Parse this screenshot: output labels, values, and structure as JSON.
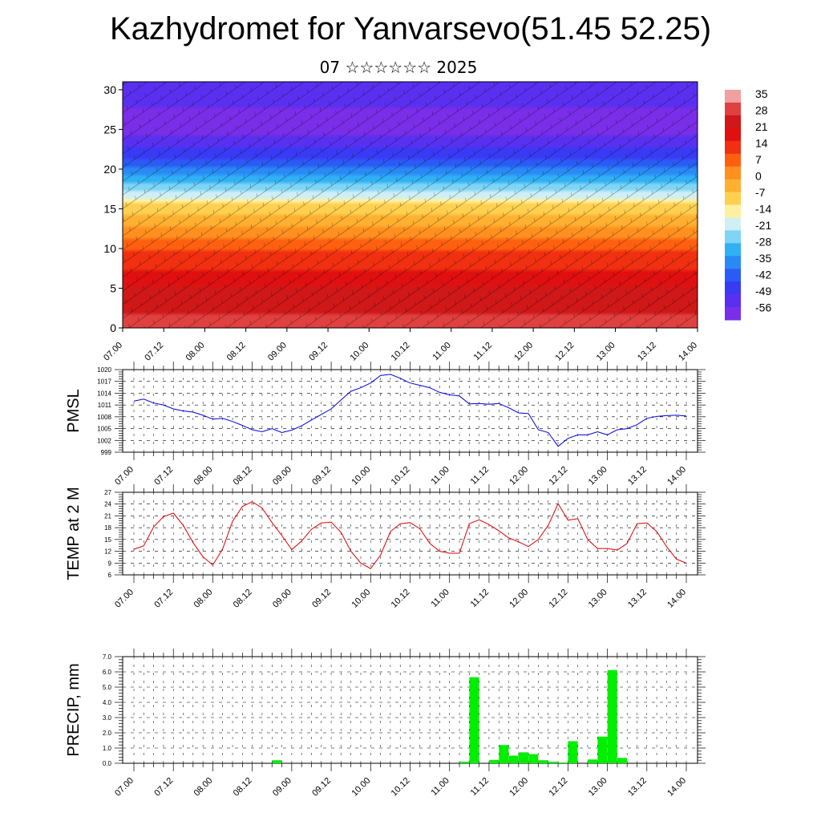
{
  "title": "Kazhydromet for Yanvarsevo(51.45 52.25)",
  "subtitle": "07 ☆☆☆☆☆☆ 2025",
  "time_labels": [
    "07.00",
    "07.12",
    "08.00",
    "08.12",
    "09.00",
    "09.12",
    "10.00",
    "10.12",
    "11.00",
    "11.12",
    "12.00",
    "12.12",
    "13.00",
    "13.12",
    "14.00"
  ],
  "colors": {
    "pmsl_line": "#0000e0",
    "temp_line": "#e00000",
    "precip_bar": "#00ee00",
    "colorbar": [
      "#7a2ee8",
      "#5a30f0",
      "#3a3af5",
      "#2a5cf5",
      "#2a8af5",
      "#30b0f5",
      "#7fd5f5",
      "#cfeff5",
      "#fff0a0",
      "#ffd050",
      "#ffb030",
      "#ff9020",
      "#ff6010",
      "#f03010",
      "#e01010",
      "#d01818",
      "#e04040",
      "#f0a0a0"
    ]
  },
  "chart_data": [
    {
      "type": "heatmap",
      "title": "",
      "xlabel": "",
      "ylabel": "",
      "ylim": [
        0,
        31
      ],
      "yticks": [
        0,
        5,
        10,
        15,
        20,
        25,
        30
      ],
      "colorbar_labels": [
        "35",
        "28",
        "21",
        "14",
        "7",
        "0",
        "-7",
        "-14",
        "-21",
        "-28",
        "-35",
        "-42",
        "-49",
        "-56"
      ],
      "colorbar_range": [
        -60,
        38
      ],
      "description_levels_height_to_value": [
        [
          0,
          30
        ],
        [
          5,
          22
        ],
        [
          10,
          10
        ],
        [
          15,
          -8
        ],
        [
          20,
          -38
        ],
        [
          25,
          -58
        ],
        [
          30,
          -52
        ]
      ]
    },
    {
      "type": "line",
      "ylabel": "PMSL",
      "ylim": [
        999,
        1020
      ],
      "yticks": [
        999,
        1002,
        1005,
        1008,
        1011,
        1014,
        1017,
        1020
      ],
      "x_hours_step": 3,
      "values": [
        1012,
        1012.5,
        1011.5,
        1011,
        1010,
        1009.5,
        1009.2,
        1008.4,
        1007.4,
        1007.6,
        1006.8,
        1005.8,
        1004.7,
        1004.2,
        1005,
        1004,
        1004.6,
        1005.7,
        1007.2,
        1008.6,
        1010,
        1012.3,
        1014.5,
        1015.4,
        1016.6,
        1018.5,
        1018.8,
        1017.8,
        1016.6,
        1016,
        1015.4,
        1014.2,
        1013.6,
        1013.3,
        1011.3,
        1011.4,
        1011.2,
        1011.4,
        1010.3,
        1009,
        1008.8,
        1004.7,
        1004,
        1000.5,
        1002.5,
        1003.4,
        1003.4,
        1004.2,
        1003.4,
        1004.7,
        1005,
        1006,
        1007.6,
        1008.1,
        1008.3,
        1008.4,
        1008.2
      ]
    },
    {
      "type": "line",
      "ylabel": "TEMP at 2 M",
      "ylim": [
        6,
        27
      ],
      "yticks": [
        6,
        9,
        12,
        15,
        18,
        21,
        24,
        27
      ],
      "x_hours_step": 3,
      "values": [
        12.5,
        13.4,
        18.2,
        20.8,
        21.7,
        18.6,
        14.2,
        10.6,
        8.5,
        12.6,
        19.6,
        23.4,
        24.6,
        23,
        19.3,
        16,
        12.4,
        14.6,
        17.6,
        19.2,
        19.4,
        16.8,
        12,
        9,
        7.6,
        11,
        17,
        19,
        19.3,
        17.7,
        14,
        12,
        11.5,
        11.5,
        19,
        20,
        18.8,
        17.2,
        15.4,
        14.4,
        13.2,
        15,
        18.6,
        24.1,
        19.9,
        20.3,
        15,
        12.7,
        12.7,
        12.3,
        14,
        19,
        19.2,
        17,
        13.2,
        10,
        9
      ]
    },
    {
      "type": "bar",
      "ylabel": "PRECIP, mm",
      "ylim": [
        0,
        7
      ],
      "yticks": [
        "0.0",
        "1.0",
        "2.0",
        "3.0",
        "4.0",
        "5.0",
        "6.0",
        "7.0"
      ],
      "x_hours_step": 3,
      "values": [
        0,
        0,
        0,
        0,
        0,
        0,
        0,
        0,
        0,
        0,
        0,
        0,
        0,
        0,
        0.2,
        0,
        0,
        0,
        0,
        0,
        0,
        0,
        0,
        0,
        0,
        0,
        0,
        0,
        0,
        0,
        0,
        0,
        0,
        0.1,
        5.65,
        0,
        0.22,
        1.2,
        0.5,
        0.72,
        0.6,
        0.2,
        0.1,
        0.05,
        1.45,
        0,
        0.25,
        1.75,
        6.12,
        0.35,
        0,
        0,
        0,
        0,
        0,
        0,
        0
      ]
    }
  ],
  "panel_labels": {
    "pmsl": "PMSL",
    "temp": "TEMP at 2 M",
    "precip": "PRECIP, mm"
  }
}
